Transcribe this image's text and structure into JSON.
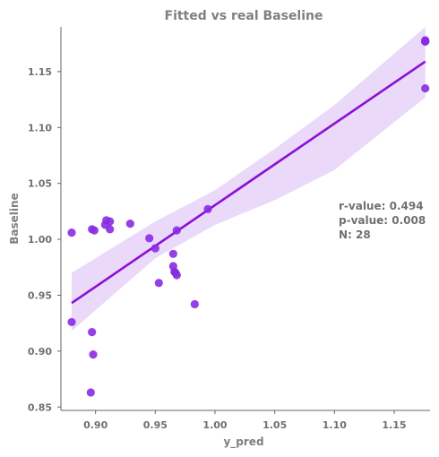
{
  "chart_data": {
    "type": "scatter",
    "title": "Fitted vs real Baseline",
    "xlabel": "y_pred",
    "ylabel": "Baseline",
    "xlim": [
      0.871,
      1.18
    ],
    "ylim": [
      0.847,
      1.19
    ],
    "xticks": [
      "0.90",
      "0.95",
      "1.00",
      "1.05",
      "1.10",
      "1.15"
    ],
    "yticks": [
      "0.85",
      "0.90",
      "0.95",
      "1.00",
      "1.05",
      "1.10",
      "1.15"
    ],
    "points": [
      {
        "x": 0.88,
        "y": 1.006
      },
      {
        "x": 0.88,
        "y": 0.926
      },
      {
        "x": 0.897,
        "y": 1.009
      },
      {
        "x": 0.899,
        "y": 1.008
      },
      {
        "x": 0.897,
        "y": 0.917
      },
      {
        "x": 0.898,
        "y": 0.897
      },
      {
        "x": 0.896,
        "y": 0.863
      },
      {
        "x": 0.908,
        "y": 1.013
      },
      {
        "x": 0.909,
        "y": 1.017
      },
      {
        "x": 0.912,
        "y": 1.016
      },
      {
        "x": 0.912,
        "y": 1.009
      },
      {
        "x": 0.929,
        "y": 1.014
      },
      {
        "x": 0.945,
        "y": 1.001
      },
      {
        "x": 0.95,
        "y": 0.992
      },
      {
        "x": 0.953,
        "y": 0.961
      },
      {
        "x": 0.965,
        "y": 0.987
      },
      {
        "x": 0.965,
        "y": 0.976
      },
      {
        "x": 0.966,
        "y": 0.971
      },
      {
        "x": 0.967,
        "y": 0.97
      },
      {
        "x": 0.968,
        "y": 0.968
      },
      {
        "x": 0.968,
        "y": 1.008
      },
      {
        "x": 0.983,
        "y": 0.942
      },
      {
        "x": 0.994,
        "y": 1.027
      },
      {
        "x": 1.176,
        "y": 1.177
      },
      {
        "x": 1.176,
        "y": 1.178
      },
      {
        "x": 1.176,
        "y": 1.177
      },
      {
        "x": 1.176,
        "y": 1.177
      },
      {
        "x": 1.176,
        "y": 1.135
      }
    ],
    "regression": {
      "x0": 0.88,
      "y0": 0.943,
      "x1": 1.176,
      "y1": 1.159
    },
    "confidence_band": {
      "x": [
        0.88,
        0.95,
        1.0,
        1.05,
        1.1,
        1.176
      ],
      "lower": [
        0.918,
        0.983,
        1.013,
        1.035,
        1.062,
        1.127
      ],
      "upper": [
        0.97,
        1.016,
        1.044,
        1.081,
        1.12,
        1.19
      ]
    },
    "annotation": [
      "r-value: 0.494",
      "p-value: 0.008",
      "N: 28"
    ],
    "colors": {
      "points": "#8A2BE2",
      "line": "#8A10D6",
      "band": "#E6D2F8",
      "axis": "#666666",
      "text": "#7f7f7f"
    }
  }
}
